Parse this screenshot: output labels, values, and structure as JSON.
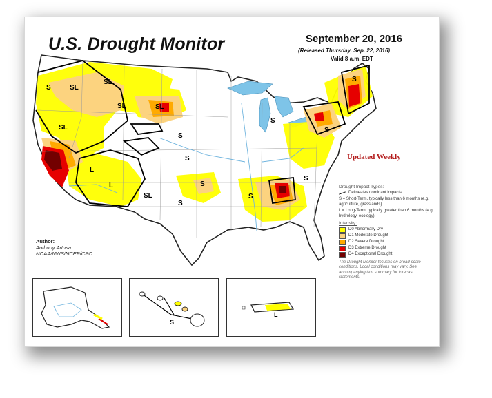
{
  "title": "U.S. Drought Monitor",
  "date": "September 20, 2016",
  "released": "(Released Thursday, Sep. 22, 2016)",
  "valid": "Valid 8 a.m. EDT",
  "updated": "Updated Weekly",
  "author": {
    "heading": "Author:",
    "name": "Anthony Artusa",
    "org": "NOAA/NWS/NCEP/CPC"
  },
  "legend": {
    "impact_title": "Drought Impact Types:",
    "delineates": "Delineates dominant impacts",
    "short_term": "S = Short-Term, typically less than 6 months (e.g. agriculture, grasslands)",
    "long_term": "L = Long-Term, typically greater than 6 months (e.g. hydrology, ecology)",
    "intensity_title": "Intensity:",
    "categories": [
      {
        "label": "D0 Abnormally Dry",
        "color": "#ffff00"
      },
      {
        "label": "D1 Moderate Drought",
        "color": "#fcd37f"
      },
      {
        "label": "D2 Severe Drought",
        "color": "#ffaa00"
      },
      {
        "label": "D3 Extreme Drought",
        "color": "#e60000"
      },
      {
        "label": "D4 Exceptional Drought",
        "color": "#730000"
      }
    ],
    "note": "The Drought Monitor focuses on broad-scale conditions. Local conditions may vary. See accompanying text summary for forecast statements."
  },
  "impact_labels": {
    "s": "S",
    "l": "L",
    "sl": "SL"
  },
  "colors": {
    "land": "#ffffff",
    "water": "#7ec4e8",
    "d0": "#ffff00",
    "d1": "#fcd37f",
    "d2": "#ffaa00",
    "d3": "#e60000",
    "d4": "#730000"
  }
}
